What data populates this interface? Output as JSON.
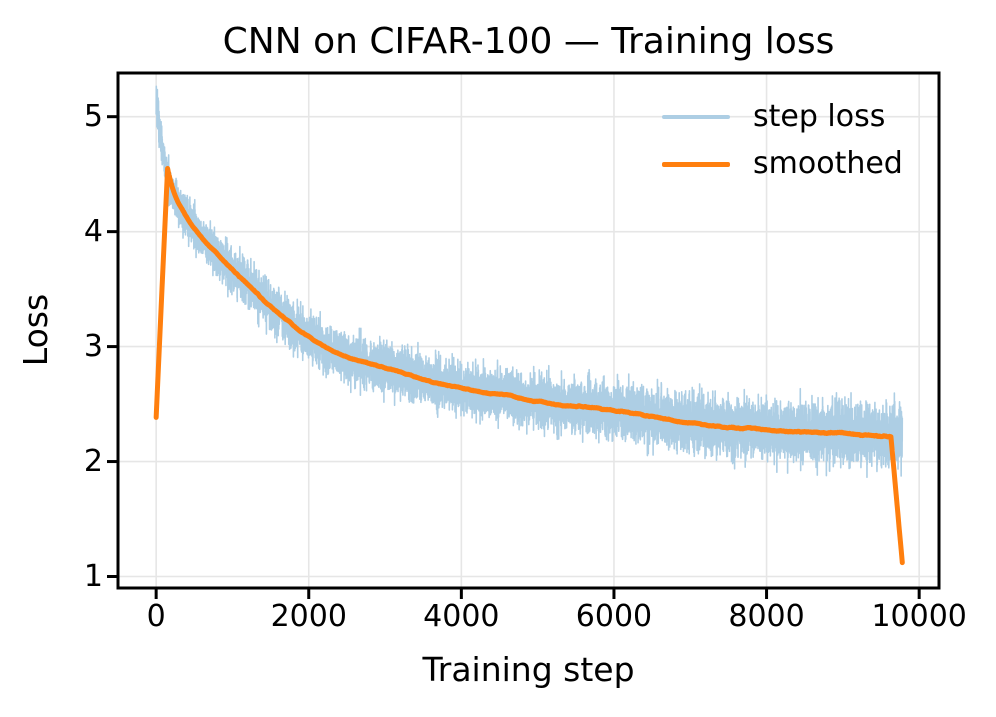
{
  "figure": {
    "title": "CNN on CIFAR-100 — Training loss",
    "background_color": "#ffffff",
    "text_color": "#000000"
  },
  "chart_data": {
    "type": "line",
    "title": "CNN on CIFAR-100 — Training loss",
    "xlabel": "Training step",
    "ylabel": "Loss",
    "xlim": [
      -500,
      10260
    ],
    "ylim": [
      0.9,
      5.38
    ],
    "x_ticks": [
      0,
      2000,
      4000,
      6000,
      8000,
      10000
    ],
    "y_ticks": [
      1,
      2,
      3,
      4,
      5
    ],
    "grid": true,
    "grid_color": "#e6e6e6",
    "spine_color": "#000000",
    "legend": {
      "position": "upper right",
      "frame": false
    },
    "series": [
      {
        "name": "step loss",
        "type": "noisy_line",
        "color": "#adcee4",
        "line_width": 1.6,
        "n_points": 9780,
        "seed": 42,
        "noise_sigma_start": 0.085,
        "noise_sigma_end": 0.13,
        "spike_prob": 0.02,
        "spike_scale": 1.8,
        "baseline_anchors": {
          "steps": [
            0,
            50,
            100,
            150,
            300,
            500,
            800,
            1000,
            1500,
            2000,
            2500,
            3000,
            3500,
            4000,
            4500,
            5000,
            5500,
            6000,
            6500,
            7000,
            7500,
            8000,
            8500,
            9000,
            9500,
            9779
          ],
          "loss": [
            5.15,
            4.85,
            4.62,
            4.44,
            4.22,
            4.02,
            3.8,
            3.66,
            3.35,
            3.07,
            2.9,
            2.81,
            2.72,
            2.64,
            2.58,
            2.52,
            2.48,
            2.44,
            2.39,
            2.33,
            2.3,
            2.28,
            2.26,
            2.25,
            2.22,
            2.2
          ]
        }
      },
      {
        "name": "smoothed",
        "type": "moving_average_of_series_0",
        "color": "#ff7f0e",
        "line_width": 5,
        "window": 300,
        "mode": "same_zero_padded",
        "key_points_read_from_plot": {
          "start": [
            0,
            2.32
          ],
          "peak": [
            150,
            4.42
          ],
          "at_2000": [
            2000,
            3.07
          ],
          "at_4000": [
            4000,
            2.64
          ],
          "at_6000": [
            6000,
            2.44
          ],
          "at_8000": [
            8000,
            2.28
          ],
          "end_drop_start": [
            9620,
            2.21
          ],
          "end": [
            9779,
            1.1
          ]
        }
      }
    ]
  }
}
